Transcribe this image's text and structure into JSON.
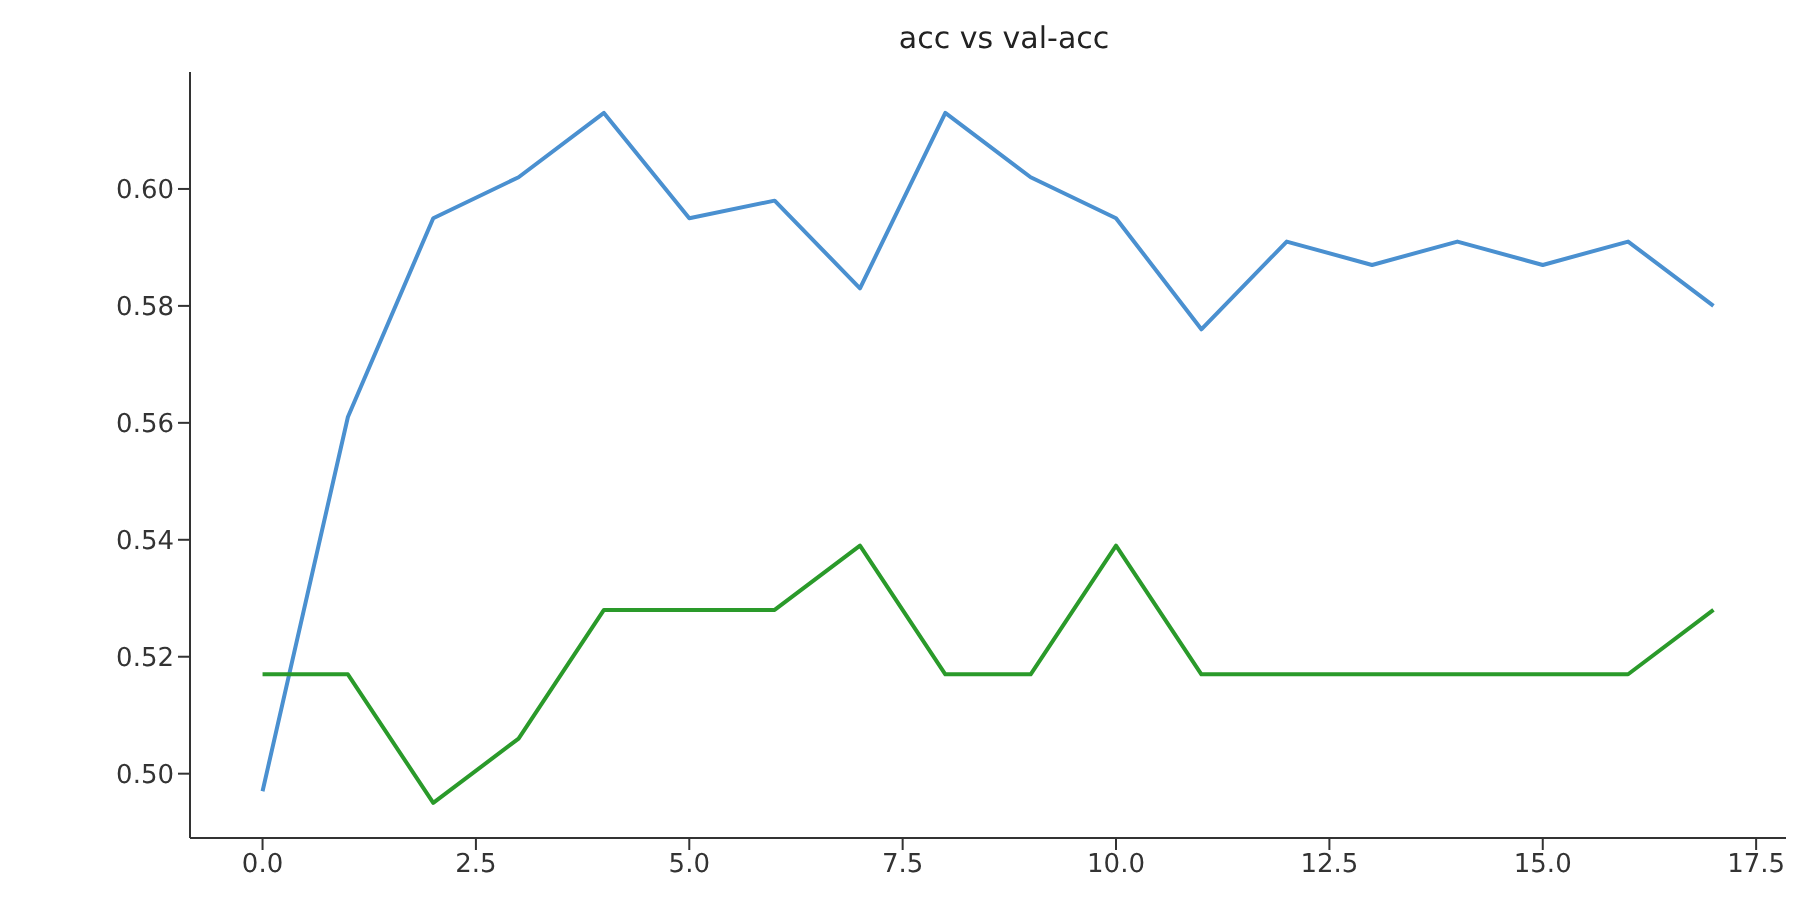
{
  "chart_data": {
    "type": "line",
    "title": "acc vs val-acc",
    "x": [
      0,
      1,
      2,
      3,
      4,
      5,
      6,
      7,
      8,
      9,
      10,
      11,
      12,
      13,
      14,
      15,
      16,
      17
    ],
    "series": [
      {
        "color": "#4a90d0",
        "values": [
          0.497,
          0.561,
          0.595,
          0.602,
          0.613,
          0.595,
          0.598,
          0.583,
          0.613,
          0.602,
          0.595,
          0.576,
          0.591,
          0.587,
          0.591,
          0.587,
          0.591,
          0.58
        ]
      },
      {
        "color": "#2a9a2a",
        "values": [
          0.517,
          0.517,
          0.495,
          0.506,
          0.528,
          0.528,
          0.528,
          0.539,
          0.517,
          0.517,
          0.539,
          0.517,
          0.517,
          0.517,
          0.517,
          0.517,
          0.517,
          0.528
        ]
      }
    ],
    "xlim": [
      -0.85,
      17.85
    ],
    "xticks": [
      {
        "value": 0,
        "label": "0.0"
      },
      {
        "value": 2.5,
        "label": "2.5"
      },
      {
        "value": 5,
        "label": "5.0"
      },
      {
        "value": 7.5,
        "label": "7.5"
      },
      {
        "value": 10,
        "label": "10.0"
      },
      {
        "value": 12.5,
        "label": "12.5"
      },
      {
        "value": 15,
        "label": "15.0"
      },
      {
        "value": 17.5,
        "label": "17.5"
      }
    ],
    "ylim": [
      0.489,
      0.62
    ],
    "yticks": [
      {
        "value": 0.5,
        "label": "0.50"
      },
      {
        "value": 0.52,
        "label": "0.52"
      },
      {
        "value": 0.54,
        "label": "0.54"
      },
      {
        "value": 0.56,
        "label": "0.56"
      },
      {
        "value": 0.58,
        "label": "0.58"
      },
      {
        "value": 0.6,
        "label": "0.60"
      }
    ],
    "grid": false,
    "legend": false,
    "marker": "none",
    "line_style": "solid"
  }
}
